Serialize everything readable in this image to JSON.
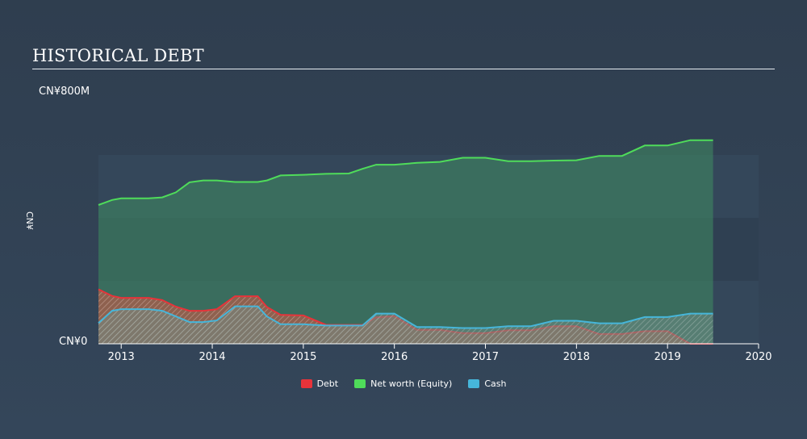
{
  "title": "HISTORICAL DEBT",
  "chart_data": {
    "type": "area",
    "title": "HISTORICAL DEBT",
    "ylabel": "CN¥",
    "ytick_top": "CN¥800M",
    "ytick_zero": "CN¥0",
    "ylim": [
      0,
      800
    ],
    "xlim": [
      2012.75,
      2020.0
    ],
    "xticks": [
      "2013",
      "2014",
      "2015",
      "2016",
      "2017",
      "2018",
      "2019",
      "2020"
    ],
    "legend": [
      "Debt",
      "Net worth (Equity)",
      "Cash"
    ],
    "colors": {
      "Debt": "#e8333a",
      "Net worth (Equity)": "#4fdc5a",
      "Cash": "#46b6da"
    },
    "series": [
      {
        "name": "Net worth (Equity)",
        "x": [
          2012.75,
          2012.9,
          2013.0,
          2013.3,
          2013.45,
          2013.6,
          2013.75,
          2013.9,
          2014.05,
          2014.25,
          2014.5,
          2014.6,
          2014.75,
          2015.0,
          2015.25,
          2015.5,
          2015.65,
          2015.8,
          2016.0,
          2016.25,
          2016.5,
          2016.75,
          2017.0,
          2017.25,
          2017.5,
          2017.75,
          2018.0,
          2018.25,
          2018.5,
          2018.75,
          2019.0,
          2019.25,
          2019.5
        ],
        "values": [
          441,
          457,
          462,
          462,
          465,
          481,
          513,
          519,
          519,
          514,
          514,
          519,
          535,
          537,
          540,
          541,
          556,
          569,
          569,
          575,
          578,
          591,
          591,
          580,
          580,
          582,
          583,
          597,
          597,
          630,
          630,
          647,
          647
        ]
      },
      {
        "name": "Debt",
        "x": [
          2012.75,
          2012.9,
          2013.0,
          2013.3,
          2013.45,
          2013.6,
          2013.75,
          2013.9,
          2014.05,
          2014.25,
          2014.5,
          2014.6,
          2014.75,
          2015.0,
          2015.25,
          2015.5,
          2015.65,
          2015.8,
          2016.0,
          2016.25,
          2016.5,
          2016.75,
          2017.0,
          2017.25,
          2017.5,
          2017.75,
          2018.0,
          2018.25,
          2018.5,
          2018.75,
          2019.0,
          2019.25,
          2019.5
        ],
        "values": [
          173,
          152,
          146,
          146,
          139,
          118,
          105,
          105,
          110,
          151,
          151,
          117,
          92,
          90,
          60,
          60,
          60,
          84,
          88,
          44,
          44,
          34,
          34,
          43,
          43,
          56,
          56,
          31,
          31,
          40,
          40,
          0,
          0
        ]
      },
      {
        "name": "Cash",
        "x": [
          2012.75,
          2012.9,
          2013.0,
          2013.3,
          2013.45,
          2013.6,
          2013.75,
          2013.9,
          2014.05,
          2014.25,
          2014.5,
          2014.6,
          2014.75,
          2015.0,
          2015.25,
          2015.5,
          2015.65,
          2015.8,
          2016.0,
          2016.25,
          2016.5,
          2016.75,
          2017.0,
          2017.25,
          2017.5,
          2017.75,
          2018.0,
          2018.25,
          2018.5,
          2018.75,
          2019.0,
          2019.25,
          2019.5
        ],
        "values": [
          66,
          105,
          110,
          110,
          105,
          87,
          69,
          69,
          74,
          119,
          119,
          87,
          62,
          62,
          58,
          58,
          58,
          96,
          96,
          53,
          53,
          50,
          50,
          56,
          56,
          73,
          73,
          65,
          65,
          85,
          85,
          96,
          96
        ]
      }
    ]
  }
}
